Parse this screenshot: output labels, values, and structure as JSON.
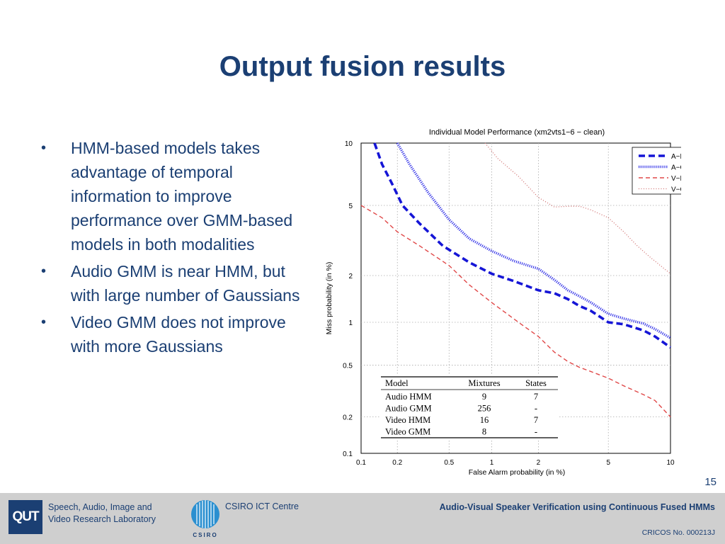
{
  "slide": {
    "title": "Output fusion results",
    "bullets": [
      "HMM-based models takes advantage of temporal information to improve performance over GMM-based models in both modalities",
      "Audio GMM is near HMM, but with large number of Gaussians",
      "Video GMM does not improve with more Gaussians"
    ],
    "bullet_symbol": "•",
    "page_number": "15"
  },
  "footer": {
    "qut_logo": "QUT",
    "lab_line1": "Speech, Audio, Image and",
    "lab_line2": "Video Research Laboratory",
    "csiro_logo_text": "CSIRO",
    "csiro_name": "CSIRO ICT Centre",
    "talk_title": "Audio-Visual Speaker Verification using Continuous Fused HMMs",
    "cricos": "CRICOS No. 000213J"
  },
  "colors": {
    "title": "#1b3f73",
    "footer_bg": "#cfcfcf",
    "A-HMM": "#1515d6",
    "A-GMM": "#3a3ae8",
    "V-HMM": "#e04848",
    "V-GMM": "#d07070"
  },
  "chart_data": {
    "type": "line",
    "title": "Individual Model Performance (xm2vts1−6 − clean)",
    "xlabel": "False Alarm probability (in %)",
    "ylabel": "Miss probability (in %)",
    "xscale": "probit",
    "yscale": "probit",
    "xlim": [
      0.1,
      10
    ],
    "ylim": [
      0.1,
      10
    ],
    "xticks": [
      0.1,
      0.2,
      0.5,
      1,
      2,
      5,
      10
    ],
    "xtick_labels": [
      "0.1",
      "0.2",
      "0.5",
      "1",
      "2",
      "5",
      "10"
    ],
    "yticks": [
      0.1,
      0.2,
      0.5,
      1,
      2,
      5,
      10
    ],
    "ytick_labels": [
      "0.1",
      "0.2",
      "0.5",
      "1",
      "2",
      "5",
      "10"
    ],
    "grid": true,
    "legend_position": "top-right",
    "series": [
      {
        "name": "A−HMM",
        "style": "dashed-thick",
        "points": [
          [
            0.13,
            10
          ],
          [
            0.15,
            8
          ],
          [
            0.18,
            6.5
          ],
          [
            0.22,
            5
          ],
          [
            0.3,
            4
          ],
          [
            0.45,
            3
          ],
          [
            0.7,
            2.4
          ],
          [
            1.0,
            2.05
          ],
          [
            1.4,
            1.85
          ],
          [
            2.0,
            1.62
          ],
          [
            2.5,
            1.55
          ],
          [
            3.0,
            1.42
          ],
          [
            3.5,
            1.28
          ],
          [
            4.0,
            1.2
          ],
          [
            5.0,
            1.0
          ],
          [
            6.0,
            0.97
          ],
          [
            7.5,
            0.88
          ],
          [
            8.5,
            0.8
          ],
          [
            10,
            0.67
          ]
        ]
      },
      {
        "name": "A−GMM",
        "style": "dotted-thick",
        "points": [
          [
            0.2,
            10
          ],
          [
            0.25,
            8
          ],
          [
            0.35,
            5.8
          ],
          [
            0.5,
            4.2
          ],
          [
            0.7,
            3.3
          ],
          [
            1.0,
            2.8
          ],
          [
            1.4,
            2.45
          ],
          [
            2.0,
            2.2
          ],
          [
            2.5,
            1.88
          ],
          [
            3.0,
            1.62
          ],
          [
            3.5,
            1.48
          ],
          [
            4.0,
            1.36
          ],
          [
            5.0,
            1.14
          ],
          [
            6.0,
            1.06
          ],
          [
            7.5,
            0.98
          ],
          [
            8.5,
            0.9
          ],
          [
            10,
            0.78
          ]
        ]
      },
      {
        "name": "V−HMM",
        "style": "dashed-thin",
        "points": [
          [
            0.1,
            5
          ],
          [
            0.15,
            4.3
          ],
          [
            0.2,
            3.6
          ],
          [
            0.3,
            3.0
          ],
          [
            0.5,
            2.3
          ],
          [
            0.7,
            1.75
          ],
          [
            1.0,
            1.35
          ],
          [
            1.5,
            1.0
          ],
          [
            2.0,
            0.8
          ],
          [
            2.5,
            0.62
          ],
          [
            3.0,
            0.53
          ],
          [
            3.5,
            0.48
          ],
          [
            4.0,
            0.45
          ],
          [
            5.0,
            0.4
          ],
          [
            6.0,
            0.35
          ],
          [
            7.5,
            0.3
          ],
          [
            8.5,
            0.27
          ],
          [
            10,
            0.2
          ]
        ]
      },
      {
        "name": "V−GMM",
        "style": "dotted-thin",
        "points": [
          [
            0.9,
            10
          ],
          [
            1.1,
            8.5
          ],
          [
            1.5,
            7
          ],
          [
            2.0,
            5.5
          ],
          [
            2.5,
            4.9
          ],
          [
            3.0,
            4.95
          ],
          [
            3.5,
            4.95
          ],
          [
            4.0,
            4.75
          ],
          [
            5.0,
            4.3
          ],
          [
            6.0,
            3.6
          ],
          [
            7.0,
            3.0
          ],
          [
            8.0,
            2.6
          ],
          [
            9.0,
            2.3
          ],
          [
            10,
            2.05
          ]
        ]
      }
    ],
    "table": {
      "headers": [
        "Model",
        "Mixtures",
        "States"
      ],
      "rows": [
        [
          "Audio HMM",
          "9",
          "7"
        ],
        [
          "Audio GMM",
          "256",
          "-"
        ],
        [
          "Video HMM",
          "16",
          "7"
        ],
        [
          "Video GMM",
          "8",
          "-"
        ]
      ]
    }
  }
}
